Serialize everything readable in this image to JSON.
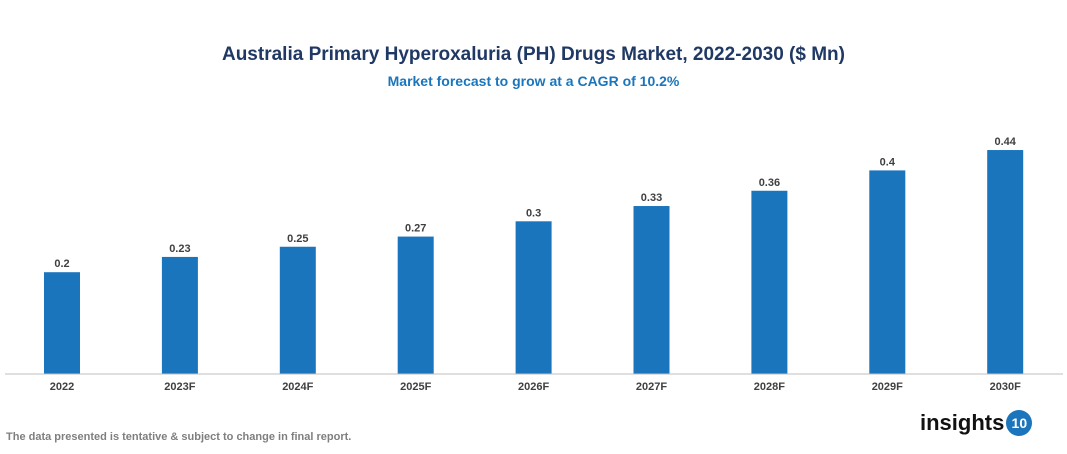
{
  "chart_data": {
    "type": "bar",
    "title": "Australia Primary Hyperoxaluria (PH) Drugs Market, 2022-2030 ($ Mn)",
    "subtitle": "Market forecast to grow at a CAGR of 10.2%",
    "categories": [
      "2022",
      "2023F",
      "2024F",
      "2025F",
      "2026F",
      "2027F",
      "2028F",
      "2029F",
      "2030F"
    ],
    "values": [
      0.2,
      0.23,
      0.25,
      0.27,
      0.3,
      0.33,
      0.36,
      0.4,
      0.44
    ],
    "labels": [
      "0.2",
      "0.23",
      "0.25",
      "0.27",
      "0.3",
      "0.33",
      "0.36",
      "0.4",
      "0.44"
    ],
    "ylim": [
      0,
      0.44
    ],
    "grid": false,
    "bar_color": "#1a75bc"
  },
  "footnote": "The data presented is tentative & subject to change in final report.",
  "logo": {
    "text": "insights",
    "num": "10"
  }
}
